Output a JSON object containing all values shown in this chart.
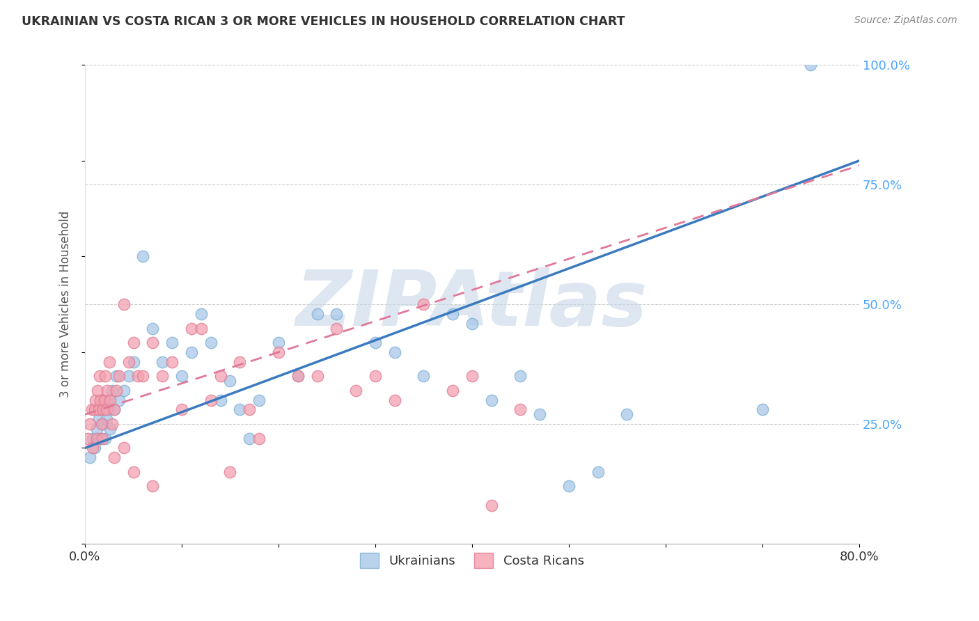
{
  "title": "UKRAINIAN VS COSTA RICAN 3 OR MORE VEHICLES IN HOUSEHOLD CORRELATION CHART",
  "source": "Source: ZipAtlas.com",
  "ylabel": "3 or more Vehicles in Household",
  "blue_color": "#a8c8e8",
  "blue_edge_color": "#7aafd4",
  "pink_color": "#f4a0b0",
  "pink_edge_color": "#e07890",
  "blue_line_color": "#3a7abf",
  "pink_line_color": "#e07898",
  "watermark_text": "ZIPAtlas",
  "watermark_color": "#c8d8e8",
  "background_color": "#ffffff",
  "grid_color": "#cccccc",
  "xlim": [
    0.0,
    80.0
  ],
  "ylim": [
    0.0,
    100.0
  ],
  "blue_line_x0": 0.0,
  "blue_line_y0": 20.0,
  "blue_line_x1": 80.0,
  "blue_line_y1": 80.0,
  "pink_line_x0": 0.0,
  "pink_line_y0": 27.0,
  "pink_line_x1": 80.0,
  "pink_line_y1": 79.0,
  "blue_scatter_x": [
    0.5,
    0.8,
    1.0,
    1.2,
    1.4,
    1.5,
    1.6,
    1.8,
    1.9,
    2.0,
    2.1,
    2.2,
    2.3,
    2.5,
    2.6,
    2.8,
    3.0,
    3.2,
    3.5,
    4.0,
    4.5,
    5.0,
    6.0,
    7.0,
    8.0,
    9.0,
    10.0,
    11.0,
    12.0,
    13.0,
    14.0,
    15.0,
    16.0,
    17.0,
    18.0,
    20.0,
    22.0,
    24.0,
    26.0,
    30.0,
    32.0,
    35.0,
    38.0,
    40.0,
    42.0,
    45.0,
    47.0,
    50.0,
    53.0,
    56.0,
    70.0,
    75.0
  ],
  "blue_scatter_y": [
    18.0,
    22.0,
    20.0,
    24.0,
    26.0,
    28.0,
    22.0,
    30.0,
    25.0,
    28.0,
    22.0,
    26.0,
    30.0,
    28.0,
    24.0,
    32.0,
    28.0,
    35.0,
    30.0,
    32.0,
    35.0,
    38.0,
    60.0,
    45.0,
    38.0,
    42.0,
    35.0,
    40.0,
    48.0,
    42.0,
    30.0,
    34.0,
    28.0,
    22.0,
    30.0,
    42.0,
    35.0,
    48.0,
    48.0,
    42.0,
    40.0,
    35.0,
    48.0,
    46.0,
    30.0,
    35.0,
    27.0,
    12.0,
    15.0,
    27.0,
    28.0,
    100.0
  ],
  "pink_scatter_x": [
    0.3,
    0.5,
    0.7,
    0.8,
    1.0,
    1.1,
    1.2,
    1.3,
    1.4,
    1.5,
    1.6,
    1.7,
    1.8,
    1.9,
    2.0,
    2.1,
    2.2,
    2.3,
    2.5,
    2.6,
    2.8,
    3.0,
    3.2,
    3.5,
    4.0,
    4.5,
    5.0,
    5.5,
    6.0,
    7.0,
    8.0,
    9.0,
    10.0,
    11.0,
    12.0,
    13.0,
    14.0,
    15.0,
    16.0,
    17.0,
    18.0,
    20.0,
    22.0,
    24.0,
    26.0,
    28.0,
    30.0,
    32.0,
    35.0,
    38.0,
    40.0,
    42.0,
    45.0,
    3.0,
    4.0,
    5.0,
    7.0
  ],
  "pink_scatter_y": [
    22.0,
    25.0,
    28.0,
    20.0,
    28.0,
    30.0,
    22.0,
    32.0,
    28.0,
    35.0,
    30.0,
    25.0,
    22.0,
    28.0,
    30.0,
    35.0,
    28.0,
    32.0,
    38.0,
    30.0,
    25.0,
    28.0,
    32.0,
    35.0,
    50.0,
    38.0,
    42.0,
    35.0,
    35.0,
    42.0,
    35.0,
    38.0,
    28.0,
    45.0,
    45.0,
    30.0,
    35.0,
    15.0,
    38.0,
    28.0,
    22.0,
    40.0,
    35.0,
    35.0,
    45.0,
    32.0,
    35.0,
    30.0,
    50.0,
    32.0,
    35.0,
    8.0,
    28.0,
    18.0,
    20.0,
    15.0,
    12.0
  ]
}
